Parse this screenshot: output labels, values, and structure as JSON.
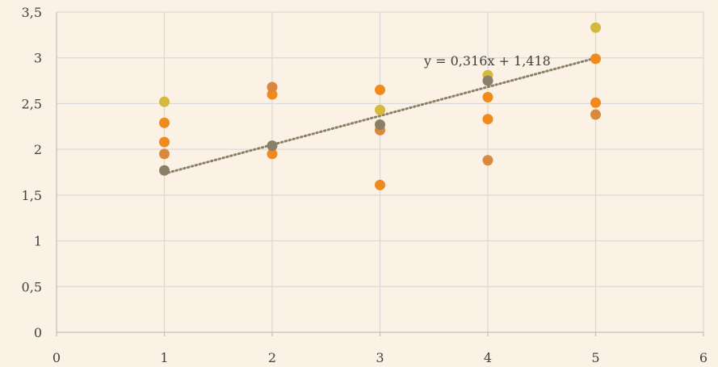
{
  "chart_data": {
    "type": "scatter",
    "title": "",
    "xlabel": "",
    "ylabel": "",
    "xlim": [
      0,
      6
    ],
    "ylim": [
      0,
      3.5
    ],
    "x_ticks": [
      "0",
      "1",
      "2",
      "3",
      "4",
      "5",
      "6"
    ],
    "y_ticks": [
      "0",
      "0,5",
      "1",
      "1,5",
      "2",
      "2,5",
      "3",
      "3,5"
    ],
    "grid": {
      "vertical": true,
      "horizontal": true
    },
    "legend": "none",
    "series": [
      {
        "color": "#d4b93c",
        "points": [
          [
            1,
            2.52
          ],
          [
            3,
            2.43
          ],
          [
            4,
            2.81
          ],
          [
            5,
            3.33
          ]
        ]
      },
      {
        "color": "#f08a1c",
        "points": [
          [
            1,
            2.29
          ],
          [
            1,
            2.08
          ],
          [
            2,
            2.6
          ],
          [
            2,
            1.95
          ],
          [
            3,
            2.65
          ],
          [
            3,
            1.61
          ],
          [
            4,
            2.57
          ],
          [
            4,
            2.33
          ],
          [
            5,
            2.99
          ],
          [
            5,
            2.51
          ]
        ]
      },
      {
        "color": "#d9893c",
        "points": [
          [
            1,
            1.95
          ],
          [
            2,
            2.68
          ],
          [
            3,
            2.21
          ],
          [
            4,
            1.88
          ],
          [
            5,
            2.38
          ]
        ]
      },
      {
        "color": "#8a8068",
        "points": [
          [
            1,
            1.77
          ],
          [
            2,
            2.04
          ],
          [
            3,
            2.27
          ],
          [
            4,
            2.75
          ]
        ]
      }
    ],
    "trendline": {
      "equation": "y = 0,316x + 1,418",
      "slope": 0.316,
      "intercept": 1.418,
      "x_range": [
        1,
        5
      ],
      "color": "#8a8068",
      "style": "dotted"
    }
  }
}
